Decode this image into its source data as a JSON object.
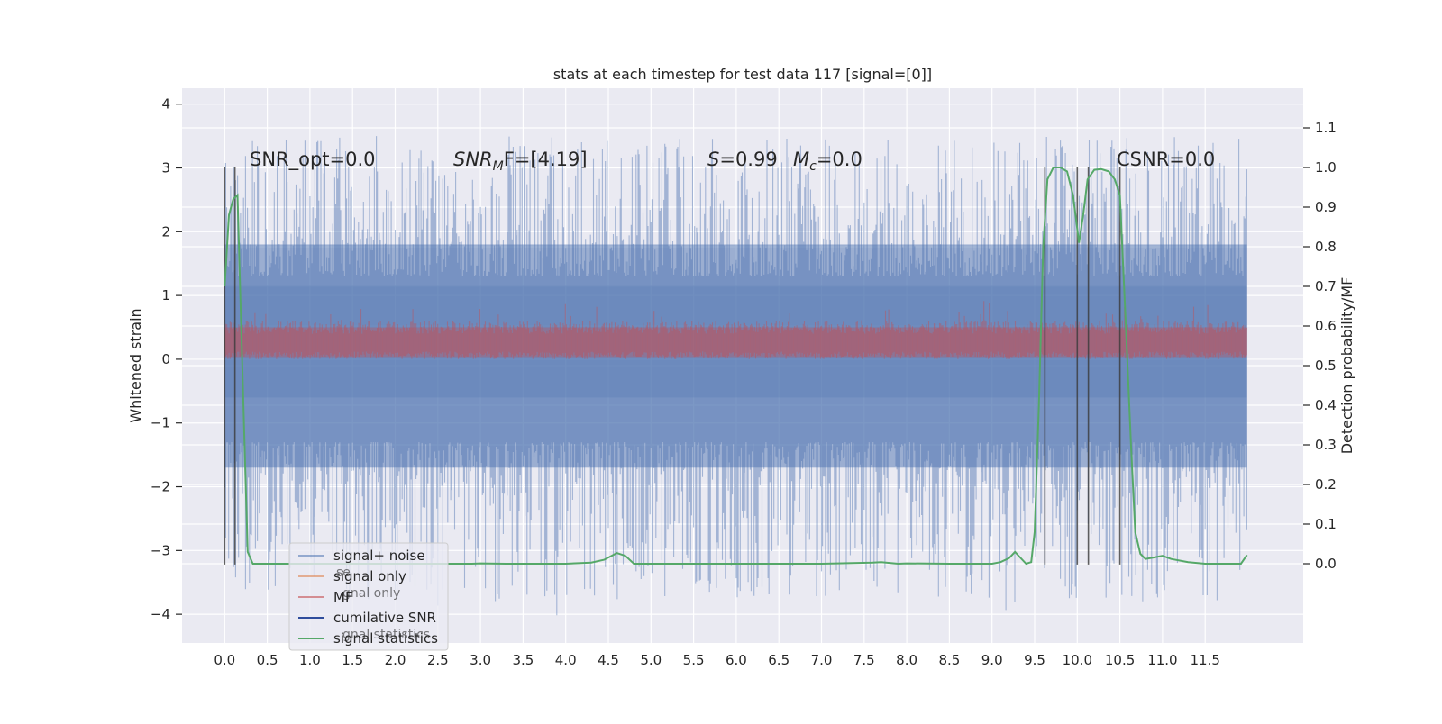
{
  "chart_data": {
    "type": "line",
    "title": "stats at each timestep for test data 117 [signal=[0]]",
    "ylabel_left": "Whitened strain",
    "ylabel_right": "Detection probability/MF",
    "xlim": [
      -0.5,
      12.65
    ],
    "ylim_left": [
      -4.45,
      4.25
    ],
    "ylim_right": [
      -0.2,
      1.2
    ],
    "x_ticks": [
      0.0,
      0.5,
      1.0,
      1.5,
      2.0,
      2.5,
      3.0,
      3.5,
      4.0,
      4.5,
      5.0,
      5.5,
      6.0,
      6.5,
      7.0,
      7.5,
      8.0,
      8.5,
      9.0,
      9.5,
      10.0,
      10.5,
      11.0,
      11.5
    ],
    "x_tick_labels": [
      "0.0",
      "0.5",
      "1.0",
      "1.5",
      "2.0",
      "2.5",
      "3.0",
      "3.5",
      "4.0",
      "4.5",
      "5.0",
      "5.5",
      "6.0",
      "6.5",
      "7.0",
      "7.5",
      "8.0",
      "8.5",
      "9.0",
      "9.5",
      "10.0",
      "10.5",
      "11.0",
      "11.5"
    ],
    "y_ticks_left": [
      -4,
      -3,
      -2,
      -1,
      0,
      1,
      2,
      3,
      4
    ],
    "y_tick_labels_left": [
      "−4",
      "−3",
      "−2",
      "−1",
      "0",
      "1",
      "2",
      "3",
      "4"
    ],
    "y_ticks_right": [
      0.0,
      0.1,
      0.2,
      0.3,
      0.4,
      0.5,
      0.6,
      0.7,
      0.8,
      0.9,
      1.0,
      1.1
    ],
    "y_tick_labels_right": [
      "0.0",
      "0.1",
      "0.2",
      "0.3",
      "0.4",
      "0.5",
      "0.6",
      "0.7",
      "0.8",
      "0.9",
      "1.0",
      "1.1"
    ],
    "grid": true,
    "legend_position": "lower-left",
    "annotations": [
      {
        "text": "SNR_opt=0.0",
        "x": 0.2,
        "y": 3.1
      },
      {
        "text": "SNR_MF=[4.19]",
        "x": 2.6,
        "y": 3.1
      },
      {
        "text": "S=0.99   M_c=0.0",
        "x": 5.6,
        "y": 3.1
      },
      {
        "text": "CSNR=0.0",
        "x": 10.35,
        "y": 3.1
      }
    ],
    "annotation_labels": {
      "snr_opt": "SNR_opt=0.0",
      "snr_mf_prefix": "SNR",
      "snr_mf_sub": "M",
      "snr_mf_suffix": "F=[4.19]",
      "s_prefix": "S",
      "s_suffix": "=0.99",
      "mc_prefix": "M",
      "mc_sub": "c",
      "mc_suffix": "=0.0",
      "csnr": "CSNR=0.0"
    },
    "vertical_lines": [
      0.0,
      0.12,
      9.62,
      10.0,
      10.13,
      10.5
    ],
    "vertical_line_range": [
      -3.22,
      3.02
    ],
    "signal_noise": {
      "x_range": [
        0.0,
        11.99
      ],
      "band_low": -1.7,
      "band_high": 1.8,
      "inner_low": -0.6,
      "inner_high": 1.15,
      "spike_max": 3.9,
      "spike_min": -4.1
    },
    "mf": {
      "x_range": [
        0.0,
        11.99
      ],
      "band_low": 0.0,
      "band_high": 0.55,
      "spike_max": 1.0
    },
    "signal_statistics": [
      [
        0.0,
        0.7
      ],
      [
        0.05,
        0.88
      ],
      [
        0.1,
        0.92
      ],
      [
        0.15,
        0.93
      ],
      [
        0.2,
        0.55
      ],
      [
        0.27,
        0.03
      ],
      [
        0.33,
        0.0
      ],
      [
        1.0,
        0.0
      ],
      [
        2.0,
        0.0
      ],
      [
        2.9,
        0.0
      ],
      [
        3.0,
        0.001
      ],
      [
        3.3,
        0.0
      ],
      [
        4.0,
        0.0
      ],
      [
        4.3,
        0.003
      ],
      [
        4.45,
        0.01
      ],
      [
        4.6,
        0.027
      ],
      [
        4.7,
        0.02
      ],
      [
        4.8,
        0.0
      ],
      [
        5.0,
        0.0
      ],
      [
        6.0,
        0.0
      ],
      [
        7.0,
        0.0
      ],
      [
        7.6,
        0.003
      ],
      [
        7.7,
        0.004
      ],
      [
        7.9,
        0.0
      ],
      [
        8.0,
        0.001
      ],
      [
        8.5,
        0.0
      ],
      [
        9.0,
        0.0
      ],
      [
        9.1,
        0.004
      ],
      [
        9.2,
        0.014
      ],
      [
        9.27,
        0.03
      ],
      [
        9.33,
        0.016
      ],
      [
        9.4,
        0.0
      ],
      [
        9.46,
        0.004
      ],
      [
        9.5,
        0.08
      ],
      [
        9.55,
        0.4
      ],
      [
        9.6,
        0.8
      ],
      [
        9.65,
        0.97
      ],
      [
        9.72,
        1.0
      ],
      [
        9.8,
        1.0
      ],
      [
        9.88,
        0.99
      ],
      [
        9.95,
        0.93
      ],
      [
        10.02,
        0.81
      ],
      [
        10.07,
        0.88
      ],
      [
        10.12,
        0.97
      ],
      [
        10.2,
        0.994
      ],
      [
        10.28,
        0.996
      ],
      [
        10.37,
        0.99
      ],
      [
        10.44,
        0.97
      ],
      [
        10.5,
        0.93
      ],
      [
        10.57,
        0.6
      ],
      [
        10.63,
        0.3
      ],
      [
        10.68,
        0.08
      ],
      [
        10.74,
        0.025
      ],
      [
        10.8,
        0.012
      ],
      [
        10.9,
        0.016
      ],
      [
        11.0,
        0.02
      ],
      [
        11.1,
        0.012
      ],
      [
        11.3,
        0.004
      ],
      [
        11.5,
        0.0
      ],
      [
        11.8,
        0.0
      ],
      [
        11.92,
        0.0
      ],
      [
        11.99,
        0.022
      ]
    ],
    "series": [
      {
        "name": "signal+ noise",
        "color": "#4c72b0"
      },
      {
        "name": "signal only",
        "color": "#dd8452"
      },
      {
        "name": "MF",
        "color": "#c44e52"
      },
      {
        "name": "cumilative SNR",
        "color": "#2f4d9c"
      },
      {
        "name": "signal statistics",
        "color": "#55a868"
      }
    ],
    "legend_ghost_text": [
      "se",
      "gnal only",
      "gnal statistics"
    ],
    "colors": {
      "plot_bg": "#eaeaf2",
      "grid": "#ffffff",
      "signal_noise": "#4c72b0",
      "mf": "#c44e52",
      "signal_statistics": "#55a868",
      "vline": "#3a3a3a",
      "text": "#262626"
    }
  }
}
